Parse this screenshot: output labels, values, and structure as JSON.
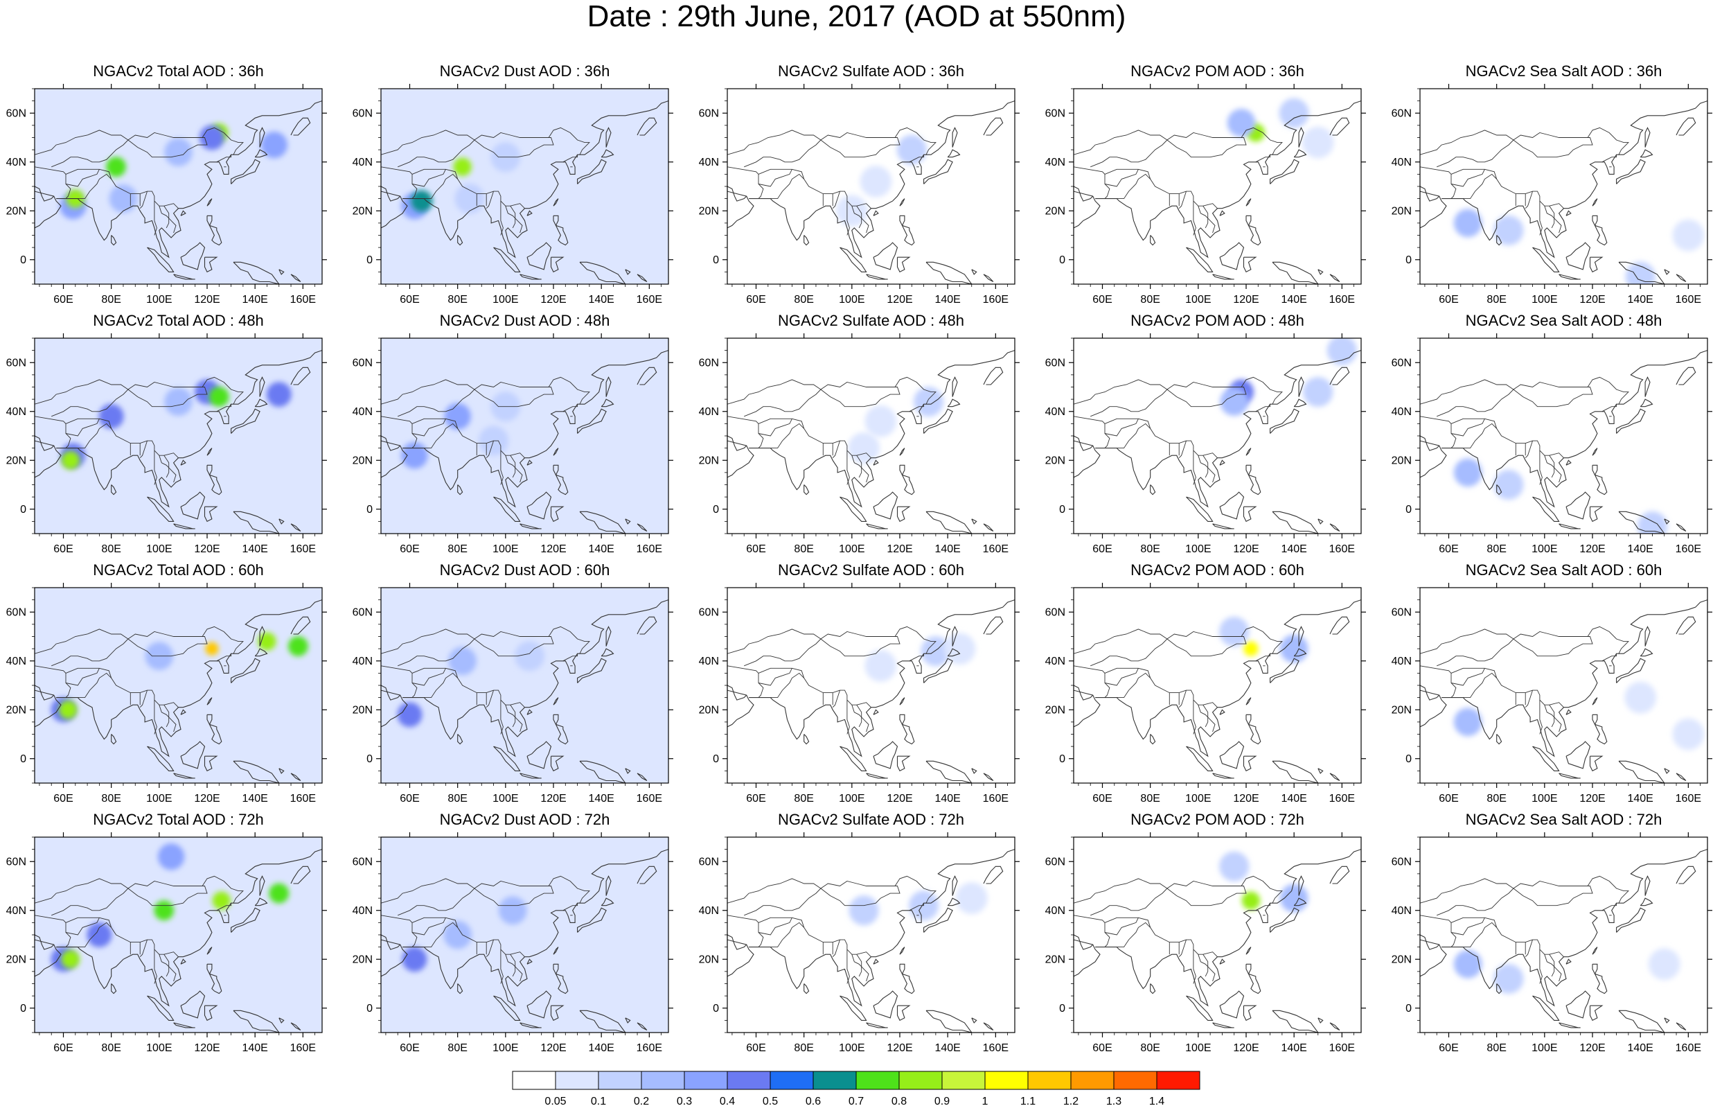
{
  "title": "Date : 29th June, 2017 (AOD at 550nm)",
  "chart_data": {
    "type": "heatmap",
    "title": "Date : 29th June, 2017 (AOD at 550nm)",
    "map_extent": {
      "lon": [
        48,
        168
      ],
      "lat": [
        -10,
        70
      ]
    },
    "x_ticks": [
      60,
      80,
      100,
      120,
      140,
      160
    ],
    "x_tick_labels": [
      "60E",
      "80E",
      "100E",
      "120E",
      "140E",
      "160E"
    ],
    "y_ticks": [
      0,
      20,
      40,
      60
    ],
    "y_tick_labels": [
      "0",
      "20N",
      "40N",
      "60N"
    ],
    "colorbar": {
      "levels": [
        "0.05",
        "0.1",
        "0.2",
        "0.3",
        "0.4",
        "0.5",
        "0.6",
        "0.7",
        "0.8",
        "0.9",
        "1",
        "1.1",
        "1.2",
        "1.3",
        "1.4"
      ],
      "colors": [
        "#ffffff",
        "#dde6ff",
        "#c2d2ff",
        "#a6bcff",
        "#8aa3ff",
        "#6b7af2",
        "#1f6ef5",
        "#0a8f8f",
        "#4ee21a",
        "#96ee19",
        "#c8f53a",
        "#ffff00",
        "#ffc800",
        "#ff9a00",
        "#ff6a00",
        "#ff1a00"
      ]
    },
    "panels": [
      {
        "title": "NGACv2 Total AOD : 36h",
        "species": "total",
        "hour": 36,
        "background_class": 1,
        "blobs": [
          {
            "lon": 64,
            "lat": 22,
            "class": 4
          },
          {
            "lon": 65,
            "lat": 25,
            "class": 9
          },
          {
            "lon": 82,
            "lat": 38,
            "class": 8
          },
          {
            "lon": 125,
            "lat": 52,
            "class": 9
          },
          {
            "lon": 122,
            "lat": 50,
            "class": 5
          },
          {
            "lon": 148,
            "lat": 47,
            "class": 4
          },
          {
            "lon": 108,
            "lat": 44,
            "class": 3
          },
          {
            "lon": 85,
            "lat": 25,
            "class": 3
          }
        ]
      },
      {
        "title": "NGACv2 Dust AOD : 36h",
        "species": "dust",
        "hour": 36,
        "background_class": 1,
        "blobs": [
          {
            "lon": 62,
            "lat": 22,
            "class": 4
          },
          {
            "lon": 65,
            "lat": 24,
            "class": 7
          },
          {
            "lon": 82,
            "lat": 38,
            "class": 9
          },
          {
            "lon": 100,
            "lat": 42,
            "class": 2
          },
          {
            "lon": 85,
            "lat": 25,
            "class": 2
          }
        ]
      },
      {
        "title": "NGACv2 Sulfate AOD : 36h",
        "species": "sulfate",
        "hour": 36,
        "background_class": 0,
        "blobs": [
          {
            "lon": 125,
            "lat": 45,
            "class": 2
          },
          {
            "lon": 110,
            "lat": 32,
            "class": 1
          },
          {
            "lon": 100,
            "lat": 20,
            "class": 1
          }
        ]
      },
      {
        "title": "NGACv2 POM AOD : 36h",
        "species": "pom",
        "hour": 36,
        "background_class": 0,
        "blobs": [
          {
            "lon": 124,
            "lat": 52,
            "class": 9
          },
          {
            "lon": 118,
            "lat": 56,
            "class": 3
          },
          {
            "lon": 140,
            "lat": 60,
            "class": 2
          },
          {
            "lon": 150,
            "lat": 48,
            "class": 1
          }
        ]
      },
      {
        "title": "NGACv2 Sea Salt AOD : 36h",
        "species": "seasalt",
        "hour": 36,
        "background_class": 0,
        "blobs": [
          {
            "lon": 68,
            "lat": 15,
            "class": 3
          },
          {
            "lon": 85,
            "lat": 12,
            "class": 2
          },
          {
            "lon": 140,
            "lat": -7,
            "class": 2
          },
          {
            "lon": 160,
            "lat": 10,
            "class": 1
          }
        ]
      },
      {
        "title": "NGACv2 Total AOD : 48h",
        "species": "total",
        "hour": 48,
        "background_class": 1,
        "blobs": [
          {
            "lon": 64,
            "lat": 22,
            "class": 5
          },
          {
            "lon": 63,
            "lat": 20,
            "class": 9
          },
          {
            "lon": 80,
            "lat": 38,
            "class": 5
          },
          {
            "lon": 120,
            "lat": 48,
            "class": 5
          },
          {
            "lon": 125,
            "lat": 46,
            "class": 8
          },
          {
            "lon": 150,
            "lat": 47,
            "class": 5
          },
          {
            "lon": 108,
            "lat": 44,
            "class": 3
          }
        ]
      },
      {
        "title": "NGACv2 Dust AOD : 48h",
        "species": "dust",
        "hour": 48,
        "background_class": 1,
        "blobs": [
          {
            "lon": 62,
            "lat": 22,
            "class": 4
          },
          {
            "lon": 80,
            "lat": 38,
            "class": 4
          },
          {
            "lon": 100,
            "lat": 42,
            "class": 2
          },
          {
            "lon": 95,
            "lat": 28,
            "class": 2
          }
        ]
      },
      {
        "title": "NGACv2 Sulfate AOD : 48h",
        "species": "sulfate",
        "hour": 48,
        "background_class": 0,
        "blobs": [
          {
            "lon": 132,
            "lat": 44,
            "class": 2
          },
          {
            "lon": 112,
            "lat": 36,
            "class": 1
          },
          {
            "lon": 105,
            "lat": 25,
            "class": 1
          }
        ]
      },
      {
        "title": "NGACv2 POM AOD : 48h",
        "species": "pom",
        "hour": 48,
        "background_class": 0,
        "blobs": [
          {
            "lon": 118,
            "lat": 48,
            "class": 5
          },
          {
            "lon": 115,
            "lat": 44,
            "class": 3
          },
          {
            "lon": 150,
            "lat": 48,
            "class": 2
          },
          {
            "lon": 160,
            "lat": 65,
            "class": 2
          }
        ]
      },
      {
        "title": "NGACv2 Sea Salt AOD : 48h",
        "species": "seasalt",
        "hour": 48,
        "background_class": 0,
        "blobs": [
          {
            "lon": 68,
            "lat": 15,
            "class": 3
          },
          {
            "lon": 85,
            "lat": 10,
            "class": 2
          },
          {
            "lon": 145,
            "lat": -7,
            "class": 2
          }
        ]
      },
      {
        "title": "NGACv2 Total AOD : 60h",
        "species": "total",
        "hour": 60,
        "background_class": 1,
        "blobs": [
          {
            "lon": 60,
            "lat": 20,
            "class": 5
          },
          {
            "lon": 62,
            "lat": 20,
            "class": 9
          },
          {
            "lon": 122,
            "lat": 45,
            "class": 12
          },
          {
            "lon": 145,
            "lat": 48,
            "class": 9
          },
          {
            "lon": 158,
            "lat": 46,
            "class": 8
          },
          {
            "lon": 100,
            "lat": 42,
            "class": 3
          }
        ]
      },
      {
        "title": "NGACv2 Dust AOD : 60h",
        "species": "dust",
        "hour": 60,
        "background_class": 1,
        "blobs": [
          {
            "lon": 60,
            "lat": 18,
            "class": 5
          },
          {
            "lon": 82,
            "lat": 40,
            "class": 3
          },
          {
            "lon": 110,
            "lat": 42,
            "class": 2
          }
        ]
      },
      {
        "title": "NGACv2 Sulfate AOD : 60h",
        "species": "sulfate",
        "hour": 60,
        "background_class": 0,
        "blobs": [
          {
            "lon": 135,
            "lat": 44,
            "class": 2
          },
          {
            "lon": 112,
            "lat": 38,
            "class": 1
          },
          {
            "lon": 145,
            "lat": 45,
            "class": 1
          }
        ]
      },
      {
        "title": "NGACv2 POM AOD : 60h",
        "species": "pom",
        "hour": 60,
        "background_class": 0,
        "blobs": [
          {
            "lon": 122,
            "lat": 45,
            "class": 11
          },
          {
            "lon": 140,
            "lat": 45,
            "class": 3
          },
          {
            "lon": 115,
            "lat": 52,
            "class": 2
          }
        ]
      },
      {
        "title": "NGACv2 Sea Salt AOD : 60h",
        "species": "seasalt",
        "hour": 60,
        "background_class": 0,
        "blobs": [
          {
            "lon": 68,
            "lat": 15,
            "class": 3
          },
          {
            "lon": 140,
            "lat": 25,
            "class": 1
          },
          {
            "lon": 160,
            "lat": 10,
            "class": 1
          }
        ]
      },
      {
        "title": "NGACv2 Total AOD : 72h",
        "species": "total",
        "hour": 72,
        "background_class": 1,
        "blobs": [
          {
            "lon": 60,
            "lat": 20,
            "class": 5
          },
          {
            "lon": 63,
            "lat": 20,
            "class": 9
          },
          {
            "lon": 75,
            "lat": 30,
            "class": 5
          },
          {
            "lon": 102,
            "lat": 40,
            "class": 8
          },
          {
            "lon": 126,
            "lat": 44,
            "class": 9
          },
          {
            "lon": 150,
            "lat": 47,
            "class": 8
          },
          {
            "lon": 105,
            "lat": 62,
            "class": 4
          }
        ]
      },
      {
        "title": "NGACv2 Dust AOD : 72h",
        "species": "dust",
        "hour": 72,
        "background_class": 1,
        "blobs": [
          {
            "lon": 62,
            "lat": 20,
            "class": 5
          },
          {
            "lon": 80,
            "lat": 30,
            "class": 3
          },
          {
            "lon": 103,
            "lat": 40,
            "class": 3
          }
        ]
      },
      {
        "title": "NGACv2 Sulfate AOD : 72h",
        "species": "sulfate",
        "hour": 72,
        "background_class": 0,
        "blobs": [
          {
            "lon": 130,
            "lat": 42,
            "class": 2
          },
          {
            "lon": 105,
            "lat": 40,
            "class": 2
          },
          {
            "lon": 150,
            "lat": 45,
            "class": 1
          }
        ]
      },
      {
        "title": "NGACv2 POM AOD : 72h",
        "species": "pom",
        "hour": 72,
        "background_class": 0,
        "blobs": [
          {
            "lon": 122,
            "lat": 44,
            "class": 9
          },
          {
            "lon": 140,
            "lat": 45,
            "class": 3
          },
          {
            "lon": 115,
            "lat": 58,
            "class": 2
          }
        ]
      },
      {
        "title": "NGACv2 Sea Salt  AOD : 72h",
        "species": "seasalt",
        "hour": 72,
        "background_class": 0,
        "blobs": [
          {
            "lon": 68,
            "lat": 18,
            "class": 3
          },
          {
            "lon": 85,
            "lat": 12,
            "class": 2
          },
          {
            "lon": 150,
            "lat": 18,
            "class": 1
          }
        ]
      }
    ]
  }
}
